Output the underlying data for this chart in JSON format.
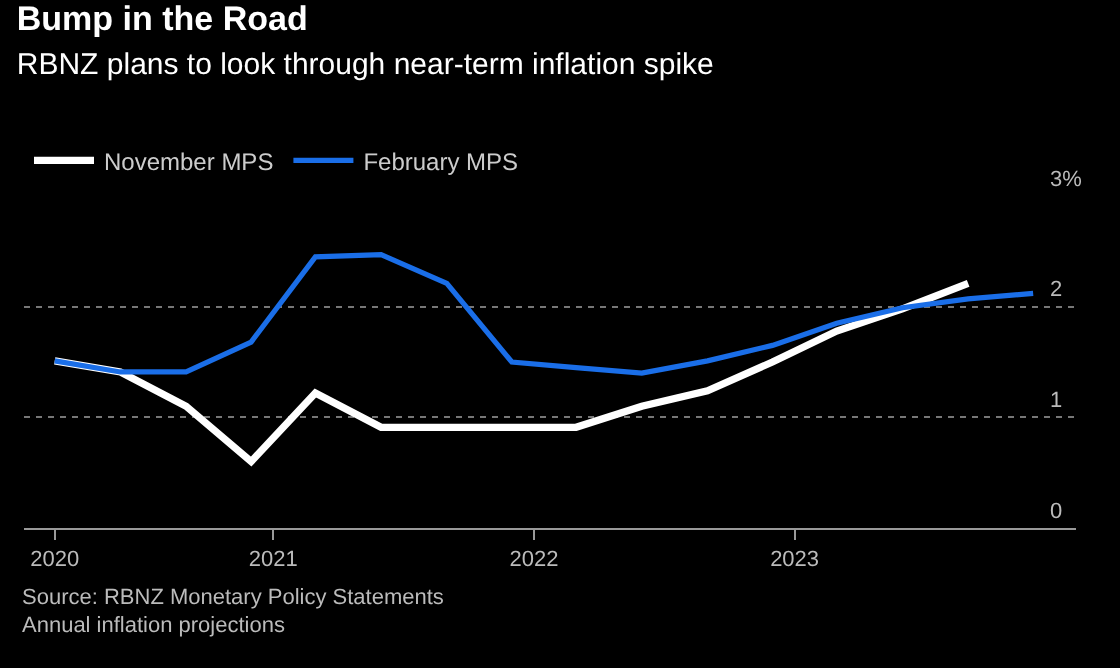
{
  "chart_data": {
    "type": "line",
    "title": "Bump in the Road",
    "subtitle": "RBNZ plans to look through near-term inflation spike",
    "x": [
      "2020-03-01",
      "2020-06-01",
      "2020-09-01",
      "2020-12-01",
      "2021-03-01",
      "2021-06-01",
      "2021-09-01",
      "2021-12-01",
      "2022-03-01",
      "2022-06-01",
      "2022-09-01",
      "2022-12-01",
      "2023-03-01",
      "2023-06-01",
      "2023-09-01",
      "2023-12-01"
    ],
    "series": [
      {
        "name": "November MPS",
        "color": "#ffffff",
        "values": [
          1.51,
          1.41,
          1.1,
          0.6,
          1.22,
          0.91,
          0.91,
          0.91,
          0.91,
          1.1,
          1.24,
          1.5,
          1.78,
          1.98,
          2.21,
          null
        ]
      },
      {
        "name": "February MPS",
        "color": "#1a6ee8",
        "values": [
          1.51,
          1.41,
          1.41,
          1.68,
          2.45,
          2.47,
          2.21,
          1.5,
          1.45,
          1.4,
          1.51,
          1.65,
          1.85,
          1.99,
          2.07,
          2.12
        ]
      }
    ],
    "xlim": [
      "2020-01-18",
      "2024-01-30"
    ],
    "xticks": [
      {
        "value": "2020-03-01",
        "label": "2020"
      },
      {
        "value": "2021-01-01",
        "label": "2021"
      },
      {
        "value": "2022-01-01",
        "label": "2022"
      },
      {
        "value": "2023-01-01",
        "label": "2023"
      }
    ],
    "ylim": [
      0,
      3
    ],
    "yticks": [
      0,
      1,
      2,
      {
        "value": 3,
        "label": "3%"
      }
    ],
    "grid": "y",
    "legend": "top left",
    "marker": "none",
    "line_style": "solid",
    "annotations": [
      "Source: RBNZ Monetary Policy Statements",
      "Annual inflation projections"
    ]
  }
}
